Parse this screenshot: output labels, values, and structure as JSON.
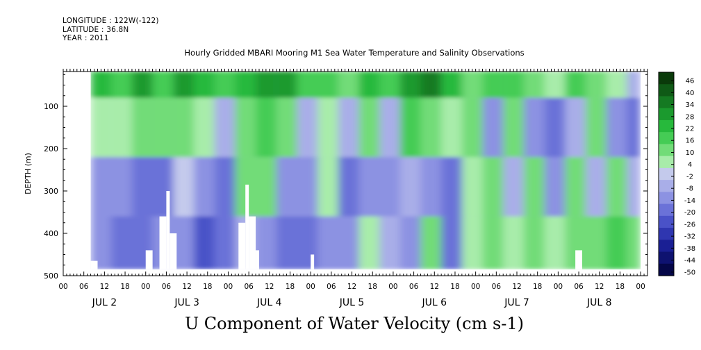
{
  "header": {
    "longitude": "LONGITUDE : 122W(-122)",
    "latitude": "LATITUDE : 36.8N",
    "year": "YEAR : 2011"
  },
  "chart_data": {
    "type": "heatmap",
    "title": "Hourly Gridded MBARI Mooring M1 Sea Water Temperature and Salinity Observations",
    "xlabel": "U Component of Water Velocity (cm s-1)",
    "ylabel": "DEPTH (m)",
    "y_axis": {
      "ticks": [
        100,
        200,
        300,
        400,
        500
      ],
      "range": [
        18,
        500
      ],
      "inverted": true,
      "data_bottom": 485
    },
    "x_axis": {
      "hour_ticks": [
        "00",
        "06",
        "12",
        "18",
        "00",
        "06",
        "12",
        "18",
        "00",
        "06",
        "12",
        "18",
        "00",
        "06",
        "12",
        "18",
        "00",
        "06",
        "12",
        "18",
        "00",
        "06",
        "12",
        "18",
        "00",
        "06",
        "12",
        "18",
        "00"
      ],
      "day_labels": [
        "JUL 2",
        "JUL 3",
        "JUL 4",
        "JUL 5",
        "JUL 6",
        "JUL 7",
        "JUL 8"
      ],
      "range_hours": [
        0,
        170
      ],
      "data_start_hour": 8,
      "data_end_hour": 168
    },
    "colorbar": {
      "labels": [
        "46",
        "40",
        "34",
        "28",
        "22",
        "16",
        "10",
        "4",
        "-2",
        "-8",
        "-14",
        "-20",
        "-26",
        "-32",
        "-38",
        "-44",
        "-50"
      ],
      "colors": [
        "#0a3a0a",
        "#0f5a16",
        "#157a22",
        "#1b9a2e",
        "#27b93c",
        "#45cc55",
        "#72dc78",
        "#a8ecaa",
        "#c4caec",
        "#a9aee8",
        "#8c92e2",
        "#6b72d8",
        "#4a52c8",
        "#2f36b0",
        "#1a1f94",
        "#0e1270",
        "#050748"
      ]
    },
    "field_description_classes": [
      "strong_positive",
      "positive",
      "weak_negative",
      "negative",
      "strong_negative"
    ],
    "field_colors": {
      "strong_positive": "#2fcc4a",
      "positive": "#7ee07e",
      "weak_negative": "#a8ace8",
      "negative": "#8a8fe0",
      "strong_negative": "#6a70d6"
    },
    "columns": [
      {
        "hour": 8,
        "surface": 24,
        "upper": 8,
        "mid": -10,
        "deep": -12
      },
      {
        "hour": 14,
        "surface": 18,
        "upper": 4,
        "mid": -14,
        "deep": -20
      },
      {
        "hour": 20,
        "surface": 30,
        "upper": 12,
        "mid": -16,
        "deep": -18
      },
      {
        "hour": 26,
        "surface": 20,
        "upper": 10,
        "mid": -18,
        "deep": -10
      },
      {
        "hour": 32,
        "surface": 28,
        "upper": 14,
        "mid": 2,
        "deep": -14
      },
      {
        "hour": 38,
        "surface": 22,
        "upper": 6,
        "mid": -12,
        "deep": -22
      },
      {
        "hour": 44,
        "surface": 16,
        "upper": -4,
        "mid": -16,
        "deep": -18
      },
      {
        "hour": 50,
        "surface": 26,
        "upper": 12,
        "mid": 10,
        "deep": -6
      },
      {
        "hour": 56,
        "surface": 32,
        "upper": 18,
        "mid": 14,
        "deep": -10
      },
      {
        "hour": 62,
        "surface": 28,
        "upper": 10,
        "mid": -12,
        "deep": -16
      },
      {
        "hour": 68,
        "surface": 16,
        "upper": -6,
        "mid": -14,
        "deep": -18
      },
      {
        "hour": 74,
        "surface": 20,
        "upper": 8,
        "mid": 6,
        "deep": -12
      },
      {
        "hour": 80,
        "surface": 14,
        "upper": -8,
        "mid": -16,
        "deep": -14
      },
      {
        "hour": 86,
        "surface": 24,
        "upper": 12,
        "mid": -10,
        "deep": 8
      },
      {
        "hour": 92,
        "surface": 18,
        "upper": -6,
        "mid": -12,
        "deep": -8
      },
      {
        "hour": 98,
        "surface": 30,
        "upper": 16,
        "mid": -8,
        "deep": -10
      },
      {
        "hour": 104,
        "surface": 34,
        "upper": 14,
        "mid": -14,
        "deep": 10
      },
      {
        "hour": 110,
        "surface": 22,
        "upper": 4,
        "mid": -20,
        "deep": -16
      },
      {
        "hour": 116,
        "surface": 12,
        "upper": 10,
        "mid": 8,
        "deep": 4
      },
      {
        "hour": 122,
        "surface": 16,
        "upper": -10,
        "mid": 12,
        "deep": 10
      },
      {
        "hour": 128,
        "surface": 20,
        "upper": 14,
        "mid": -8,
        "deep": 6
      },
      {
        "hour": 134,
        "surface": 10,
        "upper": -12,
        "mid": 10,
        "deep": 12
      },
      {
        "hour": 140,
        "surface": 8,
        "upper": -16,
        "mid": -10,
        "deep": 4
      },
      {
        "hour": 146,
        "surface": 18,
        "upper": -8,
        "mid": 12,
        "deep": 14
      },
      {
        "hour": 152,
        "surface": 12,
        "upper": 10,
        "mid": -6,
        "deep": 10
      },
      {
        "hour": 158,
        "surface": 6,
        "upper": -14,
        "mid": 14,
        "deep": 16
      },
      {
        "hour": 164,
        "surface": -4,
        "upper": -20,
        "mid": -8,
        "deep": 12
      }
    ],
    "missing_regions": [
      {
        "hour_start": 8,
        "hour_end": 10,
        "depth_top": 465,
        "depth_bottom": 485
      },
      {
        "hour_start": 24,
        "hour_end": 26,
        "depth_top": 440,
        "depth_bottom": 485
      },
      {
        "hour_start": 28,
        "hour_end": 30,
        "depth_top": 360,
        "depth_bottom": 485
      },
      {
        "hour_start": 30,
        "hour_end": 31,
        "depth_top": 300,
        "depth_bottom": 485
      },
      {
        "hour_start": 31,
        "hour_end": 33,
        "depth_top": 400,
        "depth_bottom": 485
      },
      {
        "hour_start": 51,
        "hour_end": 53,
        "depth_top": 375,
        "depth_bottom": 485
      },
      {
        "hour_start": 53,
        "hour_end": 54,
        "depth_top": 285,
        "depth_bottom": 485
      },
      {
        "hour_start": 54,
        "hour_end": 56,
        "depth_top": 360,
        "depth_bottom": 485
      },
      {
        "hour_start": 56,
        "hour_end": 57,
        "depth_top": 440,
        "depth_bottom": 485
      },
      {
        "hour_start": 72,
        "hour_end": 73,
        "depth_top": 450,
        "depth_bottom": 485
      },
      {
        "hour_start": 149,
        "hour_end": 151,
        "depth_top": 440,
        "depth_bottom": 485
      }
    ]
  }
}
